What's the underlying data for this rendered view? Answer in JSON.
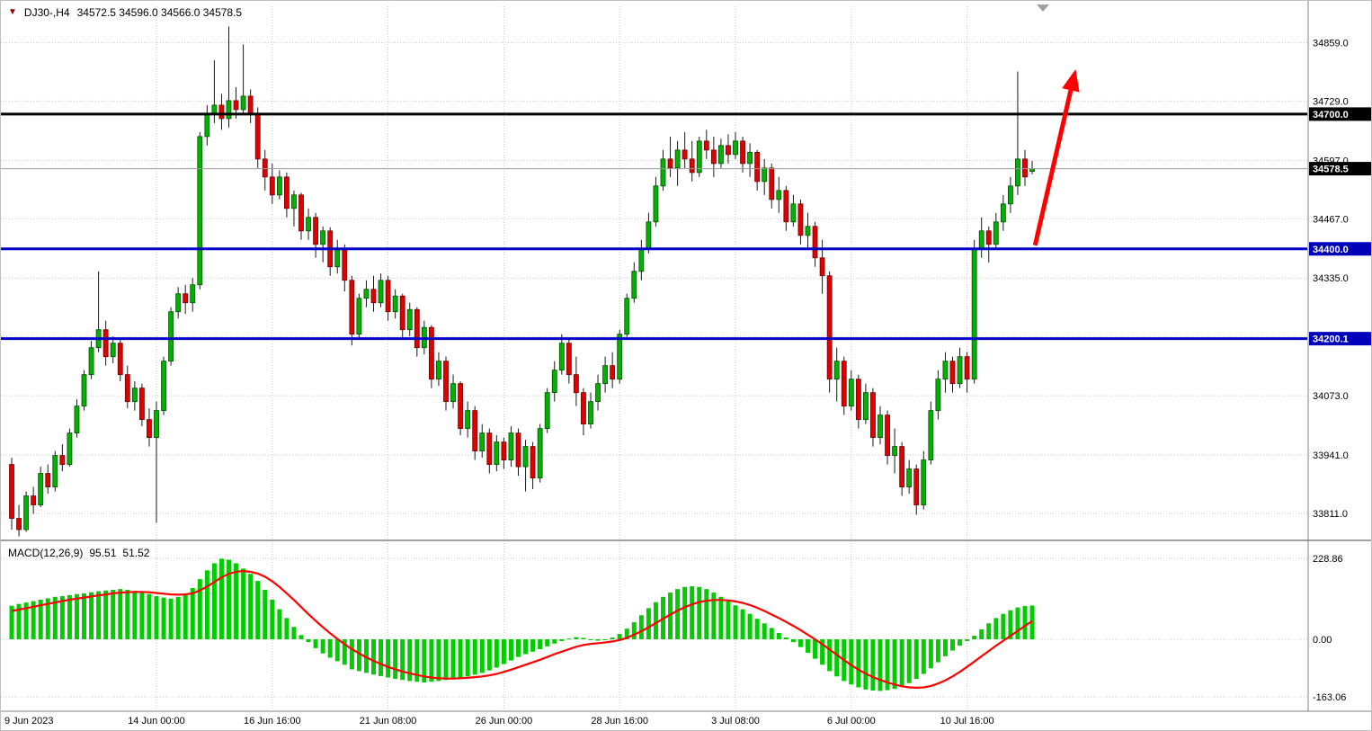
{
  "window": {
    "title": "DJ30-,H4"
  },
  "header": {
    "symbol": "DJ30-,H4",
    "ohlc": "34572.5 34596.0 34566.0 34578.5"
  },
  "colors": {
    "up": "#00B300",
    "up_border": "#004D00",
    "down": "#E00000",
    "down_border": "#700000",
    "wick": "#1A1A1A",
    "grid": "#C9C9C9",
    "macd_hist": "#00CC00",
    "macd_signal": "#FF0000",
    "bid_line": "#999999",
    "arrow": "#FF0000",
    "separator": "#808080",
    "axis_text": "#000000",
    "tag_text": "#FFFFFF"
  },
  "price_axis": {
    "labels": [
      {
        "label": "34859.0",
        "value": 34859
      },
      {
        "label": "34729.0",
        "value": 34729
      },
      {
        "label": "34597.0",
        "value": 34597
      },
      {
        "label": "34467.0",
        "value": 34467
      },
      {
        "label": "34335.0",
        "value": 34335
      },
      {
        "label": "34073.0",
        "value": 34073
      },
      {
        "label": "33941.0",
        "value": 33941
      },
      {
        "label": "33811.0",
        "value": 33811
      }
    ],
    "tags": [
      {
        "label": "34700.0",
        "value": 34700,
        "bg": "#000000"
      },
      {
        "label": "34578.5",
        "value": 34578.5,
        "bg": "#000000"
      },
      {
        "label": "34400.0",
        "value": 34400,
        "bg": "#0000BB"
      },
      {
        "label": "34200.1",
        "value": 34200.1,
        "bg": "#0000BB"
      }
    ]
  },
  "time_axis": {
    "ticks": [
      {
        "label": "9 Jun 2023",
        "index": 0
      },
      {
        "label": "14 Jun 00:00",
        "index": 20
      },
      {
        "label": "16 Jun 16:00",
        "index": 36
      },
      {
        "label": "21 Jun 08:00",
        "index": 52
      },
      {
        "label": "26 Jun 00:00",
        "index": 68
      },
      {
        "label": "28 Jun 16:00",
        "index": 84
      },
      {
        "label": "3 Jul 08:00",
        "index": 100
      },
      {
        "label": "6 Jul 00:00",
        "index": 116
      },
      {
        "label": "10 Jul 16:00",
        "index": 132
      }
    ]
  },
  "macd_panel": {
    "label": "MACD(12,26,9)",
    "main_value": "95.51",
    "signal_value": "51.52",
    "axis": [
      {
        "label": "228.86",
        "value": 228.86
      },
      {
        "label": "0.00",
        "value": 0
      },
      {
        "label": "-163.06",
        "value": -163.06
      }
    ]
  },
  "chart_data": {
    "type": "candlestick",
    "title": "DJ30-,H4",
    "symbol": "DJ30-",
    "timeframe": "H4",
    "ylim": [
      33755,
      34940
    ],
    "grid_prices": [
      34859,
      34729,
      34597,
      34467,
      34335,
      34205,
      34073,
      33941,
      33811
    ],
    "horizontal_lines": [
      {
        "price": 34700.0,
        "color": "#000000",
        "width": 3,
        "label": "34700.0"
      },
      {
        "price": 34400.0,
        "color": "#0000C8",
        "width": 3,
        "label": "34400.0"
      },
      {
        "price": 34200.1,
        "color": "#0000C8",
        "width": 3,
        "label": "34200.1"
      }
    ],
    "current_price": 34578.5,
    "candles": [
      [
        33920,
        33935,
        33775,
        33800
      ],
      [
        33800,
        33830,
        33760,
        33775
      ],
      [
        33775,
        33860,
        33770,
        33850
      ],
      [
        33850,
        33870,
        33810,
        33830
      ],
      [
        33830,
        33915,
        33825,
        33900
      ],
      [
        33900,
        33920,
        33855,
        33870
      ],
      [
        33870,
        33950,
        33860,
        33940
      ],
      [
        33940,
        33965,
        33905,
        33920
      ],
      [
        33920,
        34000,
        33915,
        33990
      ],
      [
        33990,
        34065,
        33980,
        34050
      ],
      [
        34050,
        34130,
        34040,
        34120
      ],
      [
        34120,
        34195,
        34110,
        34180
      ],
      [
        34180,
        34350,
        34170,
        34220
      ],
      [
        34220,
        34240,
        34140,
        34160
      ],
      [
        34160,
        34205,
        34145,
        34190
      ],
      [
        34190,
        34200,
        34105,
        34120
      ],
      [
        34120,
        34140,
        34045,
        34060
      ],
      [
        34060,
        34105,
        34040,
        34090
      ],
      [
        34090,
        34100,
        34005,
        34020
      ],
      [
        34020,
        34045,
        33960,
        33980
      ],
      [
        33980,
        34060,
        33790,
        34040
      ],
      [
        34040,
        34160,
        34030,
        34150
      ],
      [
        34150,
        34270,
        34140,
        34260
      ],
      [
        34260,
        34315,
        34245,
        34300
      ],
      [
        34300,
        34320,
        34255,
        34280
      ],
      [
        34280,
        34335,
        34260,
        34320
      ],
      [
        34320,
        34660,
        34310,
        34650
      ],
      [
        34650,
        34720,
        34630,
        34700
      ],
      [
        34700,
        34820,
        34680,
        34720
      ],
      [
        34720,
        34745,
        34665,
        34690
      ],
      [
        34690,
        34895,
        34670,
        34730
      ],
      [
        34730,
        34760,
        34690,
        34710
      ],
      [
        34710,
        34855,
        34700,
        34740
      ],
      [
        34740,
        34755,
        34680,
        34700
      ],
      [
        34700,
        34715,
        34580,
        34600
      ],
      [
        34600,
        34620,
        34530,
        34560
      ],
      [
        34560,
        34590,
        34500,
        34520
      ],
      [
        34520,
        34575,
        34510,
        34560
      ],
      [
        34560,
        34570,
        34470,
        34490
      ],
      [
        34490,
        34530,
        34450,
        34520
      ],
      [
        34520,
        34525,
        34420,
        34440
      ],
      [
        34440,
        34490,
        34420,
        34470
      ],
      [
        34470,
        34480,
        34380,
        34410
      ],
      [
        34410,
        34450,
        34370,
        34440
      ],
      [
        34440,
        34448,
        34340,
        34360
      ],
      [
        34360,
        34420,
        34345,
        34400
      ],
      [
        34400,
        34410,
        34305,
        34330
      ],
      [
        34330,
        34340,
        34185,
        34210
      ],
      [
        34210,
        34300,
        34200,
        34290
      ],
      [
        34290,
        34330,
        34270,
        34310
      ],
      [
        34310,
        34340,
        34260,
        34280
      ],
      [
        34280,
        34345,
        34270,
        34330
      ],
      [
        34330,
        34340,
        34240,
        34260
      ],
      [
        34260,
        34310,
        34245,
        34295
      ],
      [
        34295,
        34300,
        34200,
        34220
      ],
      [
        34220,
        34280,
        34205,
        34265
      ],
      [
        34265,
        34270,
        34160,
        34180
      ],
      [
        34180,
        34240,
        34165,
        34225
      ],
      [
        34225,
        34230,
        34090,
        34110
      ],
      [
        34110,
        34170,
        34095,
        34150
      ],
      [
        34150,
        34160,
        34040,
        34060
      ],
      [
        34060,
        34120,
        34045,
        34100
      ],
      [
        34100,
        34105,
        33985,
        34000
      ],
      [
        34000,
        34060,
        33980,
        34040
      ],
      [
        34040,
        34050,
        33930,
        33950
      ],
      [
        33950,
        34010,
        33935,
        33990
      ],
      [
        33990,
        34000,
        33900,
        33920
      ],
      [
        33920,
        33985,
        33905,
        33970
      ],
      [
        33970,
        33980,
        33910,
        33930
      ],
      [
        33930,
        34005,
        33915,
        33990
      ],
      [
        33990,
        34000,
        33895,
        33915
      ],
      [
        33915,
        33975,
        33860,
        33960
      ],
      [
        33960,
        33970,
        33865,
        33890
      ],
      [
        33890,
        34010,
        33880,
        34000
      ],
      [
        34000,
        34090,
        33990,
        34080
      ],
      [
        34080,
        34150,
        34060,
        34130
      ],
      [
        34130,
        34210,
        34120,
        34190
      ],
      [
        34190,
        34200,
        34100,
        34120
      ],
      [
        34120,
        34160,
        34050,
        34080
      ],
      [
        34080,
        34090,
        33985,
        34010
      ],
      [
        34010,
        34080,
        34000,
        34060
      ],
      [
        34060,
        34120,
        34040,
        34100
      ],
      [
        34100,
        34160,
        34080,
        34140
      ],
      [
        34140,
        34170,
        34090,
        34110
      ],
      [
        34110,
        34220,
        34100,
        34210
      ],
      [
        34210,
        34300,
        34200,
        34290
      ],
      [
        34290,
        34370,
        34280,
        34350
      ],
      [
        34350,
        34420,
        34330,
        34400
      ],
      [
        34400,
        34480,
        34390,
        34460
      ],
      [
        34460,
        34560,
        34450,
        34540
      ],
      [
        34540,
        34620,
        34530,
        34600
      ],
      [
        34600,
        34650,
        34560,
        34580
      ],
      [
        34580,
        34640,
        34540,
        34620
      ],
      [
        34620,
        34660,
        34580,
        34600
      ],
      [
        34600,
        34640,
        34550,
        34570
      ],
      [
        34570,
        34650,
        34560,
        34640
      ],
      [
        34640,
        34665,
        34600,
        34620
      ],
      [
        34620,
        34650,
        34560,
        34590
      ],
      [
        34590,
        34645,
        34580,
        34630
      ],
      [
        34630,
        34655,
        34590,
        34610
      ],
      [
        34610,
        34660,
        34600,
        34640
      ],
      [
        34640,
        34650,
        34570,
        34590
      ],
      [
        34590,
        34635,
        34560,
        34615
      ],
      [
        34615,
        34620,
        34530,
        34550
      ],
      [
        34550,
        34600,
        34520,
        34580
      ],
      [
        34580,
        34590,
        34490,
        34510
      ],
      [
        34510,
        34560,
        34480,
        34530
      ],
      [
        34530,
        34540,
        34440,
        34460
      ],
      [
        34460,
        34520,
        34450,
        34500
      ],
      [
        34500,
        34510,
        34410,
        34430
      ],
      [
        34430,
        34480,
        34400,
        34450
      ],
      [
        34450,
        34460,
        34360,
        34380
      ],
      [
        34380,
        34420,
        34300,
        34340
      ],
      [
        34340,
        34350,
        34080,
        34110
      ],
      [
        34110,
        34180,
        34060,
        34150
      ],
      [
        34150,
        34160,
        34030,
        34050
      ],
      [
        34050,
        34130,
        34040,
        34110
      ],
      [
        34110,
        34120,
        34000,
        34020
      ],
      [
        34020,
        34100,
        34010,
        34080
      ],
      [
        34080,
        34090,
        33960,
        33980
      ],
      [
        33980,
        34050,
        33965,
        34030
      ],
      [
        34030,
        34040,
        33920,
        33940
      ],
      [
        33940,
        34000,
        33900,
        33960
      ],
      [
        33960,
        33970,
        33850,
        33870
      ],
      [
        33870,
        33930,
        33855,
        33910
      ],
      [
        33910,
        33920,
        33808,
        33830
      ],
      [
        33830,
        33950,
        33820,
        33930
      ],
      [
        33930,
        34060,
        33920,
        34040
      ],
      [
        34040,
        34130,
        34020,
        34110
      ],
      [
        34110,
        34170,
        34080,
        34150
      ],
      [
        34150,
        34160,
        34080,
        34100
      ],
      [
        34100,
        34180,
        34090,
        34160
      ],
      [
        34160,
        34170,
        34080,
        34110
      ],
      [
        34110,
        34420,
        34100,
        34400
      ],
      [
        34400,
        34470,
        34380,
        34440
      ],
      [
        34440,
        34450,
        34370,
        34410
      ],
      [
        34410,
        34480,
        34400,
        34460
      ],
      [
        34460,
        34520,
        34440,
        34500
      ],
      [
        34500,
        34560,
        34480,
        34540
      ],
      [
        34540,
        34795,
        34520,
        34600
      ],
      [
        34600,
        34620,
        34540,
        34560
      ],
      [
        34572.5,
        34596,
        34566,
        34578.5
      ]
    ],
    "macd": {
      "histogram": [
        95,
        100,
        104,
        108,
        112,
        116,
        120,
        122,
        125,
        128,
        130,
        133,
        136,
        138,
        140,
        142,
        140,
        137,
        133,
        128,
        122,
        118,
        115,
        120,
        130,
        145,
        170,
        195,
        215,
        228,
        225,
        215,
        200,
        185,
        165,
        140,
        112,
        85,
        60,
        35,
        12,
        -8,
        -25,
        -40,
        -52,
        -62,
        -72,
        -85,
        -90,
        -95,
        -100,
        -104,
        -108,
        -112,
        -115,
        -118,
        -120,
        -122,
        -120,
        -118,
        -115,
        -112,
        -108,
        -105,
        -100,
        -95,
        -88,
        -80,
        -70,
        -60,
        -50,
        -42,
        -35,
        -28,
        -20,
        -12,
        -5,
        2,
        6,
        4,
        0,
        -4,
        -2,
        5,
        15,
        30,
        48,
        68,
        88,
        105,
        120,
        132,
        142,
        148,
        150,
        148,
        142,
        132,
        120,
        108,
        96,
        85,
        72,
        58,
        45,
        32,
        18,
        5,
        -8,
        -22,
        -38,
        -55,
        -72,
        -90,
        -105,
        -118,
        -128,
        -136,
        -142,
        -145,
        -146,
        -144,
        -140,
        -133,
        -124,
        -112,
        -98,
        -82,
        -65,
        -48,
        -32,
        -18,
        -5,
        10,
        28,
        45,
        60,
        72,
        82,
        90,
        94,
        95.51
      ],
      "signal": [
        80,
        84,
        88,
        92,
        96,
        100,
        104,
        108,
        112,
        115,
        118,
        121,
        124,
        127,
        130,
        132,
        133,
        134,
        134,
        133,
        131,
        129,
        127,
        126,
        127,
        130,
        138,
        149,
        162,
        175,
        185,
        191,
        193,
        191,
        186,
        177,
        164,
        148,
        130,
        111,
        91,
        71,
        52,
        34,
        17,
        1,
        -14,
        -28,
        -40,
        -51,
        -61,
        -70,
        -78,
        -85,
        -91,
        -96,
        -101,
        -105,
        -108,
        -110,
        -111,
        -111,
        -110,
        -109,
        -107,
        -105,
        -102,
        -98,
        -92,
        -86,
        -79,
        -72,
        -65,
        -58,
        -50,
        -42,
        -35,
        -28,
        -21,
        -16,
        -13,
        -11,
        -9,
        -6,
        -2,
        4,
        13,
        23,
        34,
        46,
        58,
        70,
        81,
        91,
        99,
        105,
        109,
        111,
        111,
        110,
        107,
        103,
        97,
        89,
        80,
        70,
        60,
        49,
        38,
        26,
        13,
        0,
        -14,
        -29,
        -44,
        -59,
        -73,
        -86,
        -97,
        -107,
        -115,
        -122,
        -128,
        -133,
        -136,
        -137,
        -136,
        -132,
        -125,
        -116,
        -105,
        -92,
        -78,
        -63,
        -48,
        -33,
        -18,
        -4,
        10,
        24,
        38,
        51.52
      ]
    },
    "annotations": [
      {
        "type": "arrow",
        "from": {
          "index": 141.4,
          "price": 34408
        },
        "to": {
          "index": 147,
          "price": 34800
        },
        "color": "#FF0000",
        "width": 5
      }
    ]
  }
}
